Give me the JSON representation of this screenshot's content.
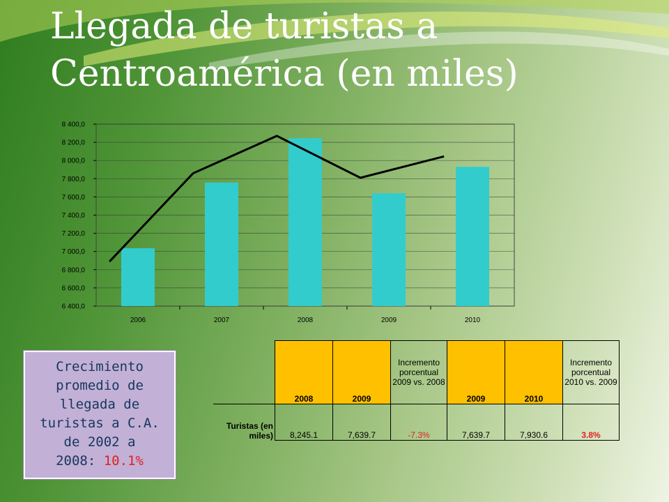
{
  "slide": {
    "title_line1": "Llegada de turistas a",
    "title_line2": "Centroamérica (en miles)"
  },
  "chart_data": {
    "type": "bar",
    "categories": [
      "2006",
      "2007",
      "2008",
      "2009",
      "2010"
    ],
    "values": [
      7036,
      7758,
      8245.1,
      7639.7,
      7930.6
    ],
    "line_values": [
      6890,
      7860,
      8270,
      7810,
      8045
    ],
    "ylim": [
      6400,
      8400
    ],
    "yticks": [
      "6 400,0",
      "6 600,0",
      "6 800,0",
      "7 000,0",
      "7 200,0",
      "7 400,0",
      "7 600,0",
      "7 800,0",
      "8 000,0",
      "8 200,0",
      "8 400,0"
    ],
    "bar_color": "#33cccc",
    "line_color": "#000000",
    "grid": true
  },
  "stat_box": {
    "line1": "Crecimiento",
    "line2": "promedio de",
    "line3": "llegada de",
    "line4": "turistas a C.A.",
    "line5": "de 2002 a",
    "line6_prefix": "2008: ",
    "line6_value": "10.1%"
  },
  "table": {
    "headers": [
      "2008",
      "2009",
      "Incremento porcentual 2009 vs. 2008",
      "2009",
      "2010",
      "Incremento porcentual 2010 vs. 2009"
    ],
    "row_label": "Turistas (en miles)",
    "cells": [
      "8,245.1",
      "7,639.7",
      "-7.3%",
      "7,639.7",
      "7,930.6",
      "3.8%"
    ]
  }
}
